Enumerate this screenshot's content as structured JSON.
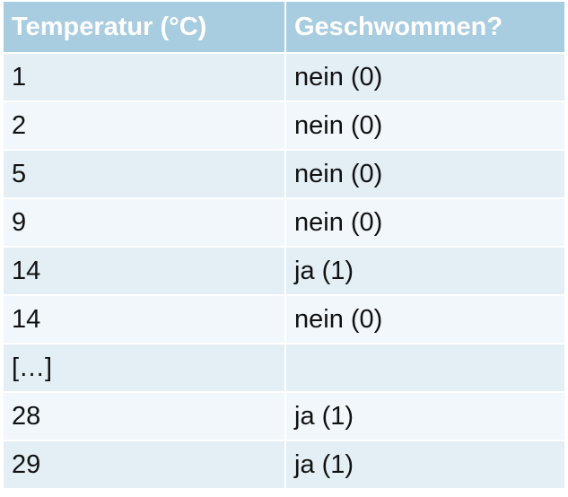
{
  "table": {
    "headers": [
      "Temperatur (°C)",
      "Geschwommen?"
    ],
    "rows": [
      [
        "1",
        "nein (0)"
      ],
      [
        "2",
        "nein (0)"
      ],
      [
        "5",
        "nein (0)"
      ],
      [
        "9",
        "nein (0)"
      ],
      [
        "14",
        "ja (1)"
      ],
      [
        "14",
        "nein (0)"
      ],
      [
        "[…]",
        ""
      ],
      [
        "28",
        "ja (1)"
      ],
      [
        "29",
        "ja (1)"
      ]
    ]
  },
  "colors": {
    "header_bg": "#a8cce0",
    "row_odd_bg": "#e3eff5",
    "row_even_bg": "#f1f7fa"
  }
}
